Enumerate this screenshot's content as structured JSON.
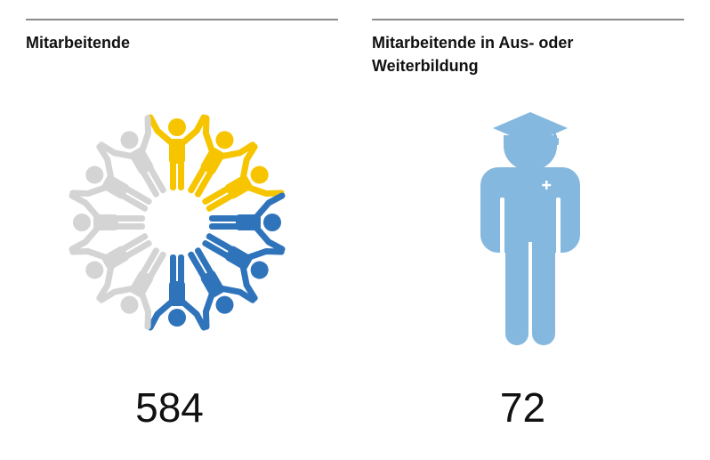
{
  "panels": [
    {
      "title": "Mitarbeitende",
      "value": "584",
      "icon": "people-circle-icon",
      "colors": {
        "gray": "#d4d4d4",
        "yellow": "#f6c500",
        "blue": "#2f74bb"
      }
    },
    {
      "title": "Mitarbeitende in Aus- oder Weiterbildung",
      "value": "72",
      "icon": "graduate-icon",
      "colors": {
        "figure": "#85b8de"
      }
    }
  ]
}
